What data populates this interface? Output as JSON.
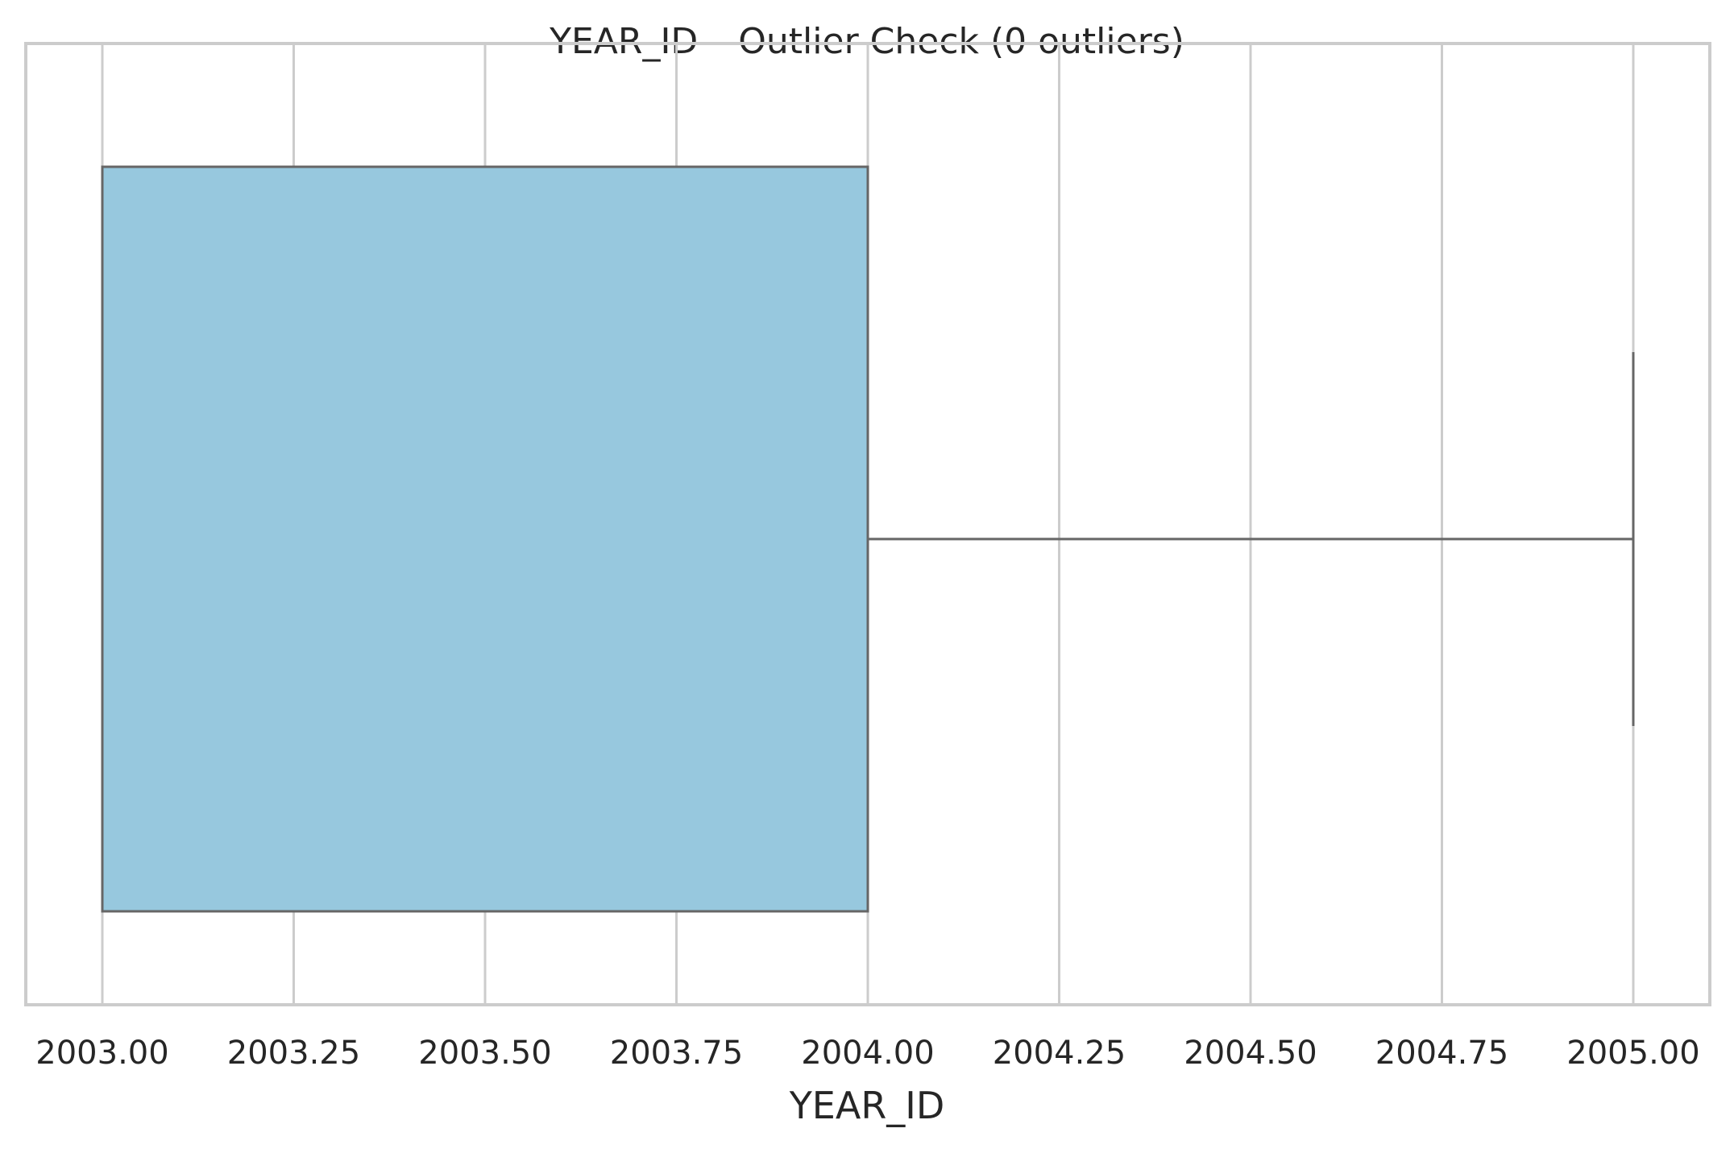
{
  "chart_data": {
    "type": "box",
    "title": "YEAR_ID – Outlier Check (0 outliers)",
    "xlabel": "YEAR_ID",
    "ylabel": "",
    "xlim": [
      2002.9,
      2005.1
    ],
    "xticks": [
      2003.0,
      2003.25,
      2003.5,
      2003.75,
      2004.0,
      2004.25,
      2004.5,
      2004.75,
      2005.0
    ],
    "xtick_labels": [
      "2003.00",
      "2003.25",
      "2003.50",
      "2003.75",
      "2004.00",
      "2004.25",
      "2004.50",
      "2004.75",
      "2005.00"
    ],
    "grid": true,
    "box": {
      "min": 2003.0,
      "q1": 2003.0,
      "median": 2004.0,
      "q3": 2004.0,
      "max": 2005.0,
      "outliers": [],
      "fill_color": "#97c8de",
      "line_color": "#666666"
    }
  }
}
